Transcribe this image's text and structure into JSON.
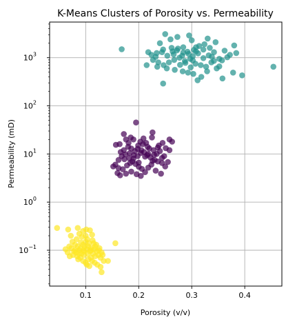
{
  "chart_data": {
    "type": "scatter",
    "title": "K-Means Clusters of Porosity vs. Permeability",
    "xlabel": "Porosity (v/v)",
    "ylabel": "Permeability (mD)",
    "xlim": [
      0.032,
      0.47
    ],
    "ylim": [
      0.018,
      5500
    ],
    "yscale": "log",
    "grid": true,
    "marker_alpha": 0.7,
    "x_ticks": [
      {
        "value": 0.1,
        "label": "0.1"
      },
      {
        "value": 0.2,
        "label": "0.2"
      },
      {
        "value": 0.3,
        "label": "0.3"
      },
      {
        "value": 0.4,
        "label": "0.4"
      }
    ],
    "y_ticks": [
      {
        "value": 0.1,
        "label": "10",
        "exp": "−1"
      },
      {
        "value": 1,
        "label": "10",
        "exp": "0"
      },
      {
        "value": 10,
        "label": "10",
        "exp": "1"
      },
      {
        "value": 100,
        "label": "10",
        "exp": "2"
      },
      {
        "value": 1000,
        "label": "10",
        "exp": "3"
      }
    ],
    "series": [
      {
        "color": "#440154",
        "points": [
          [
            0.164,
            16
          ],
          [
            0.172,
            26
          ],
          [
            0.185,
            22
          ],
          [
            0.176,
            20
          ],
          [
            0.195,
            45
          ],
          [
            0.205,
            12
          ],
          [
            0.218,
            10
          ],
          [
            0.225,
            22
          ],
          [
            0.226,
            28
          ],
          [
            0.238,
            15
          ],
          [
            0.245,
            17
          ],
          [
            0.258,
            20
          ],
          [
            0.263,
            18
          ],
          [
            0.168,
            9
          ],
          [
            0.162,
            7.5
          ],
          [
            0.156,
            6
          ],
          [
            0.152,
            5.5
          ],
          [
            0.16,
            4
          ],
          [
            0.165,
            3.6
          ],
          [
            0.17,
            4.8
          ],
          [
            0.178,
            5.8
          ],
          [
            0.184,
            6.5
          ],
          [
            0.19,
            8
          ],
          [
            0.198,
            9
          ],
          [
            0.204,
            10.5
          ],
          [
            0.21,
            11
          ],
          [
            0.216,
            9.5
          ],
          [
            0.222,
            8.5
          ],
          [
            0.23,
            7.5
          ],
          [
            0.236,
            7
          ],
          [
            0.244,
            6.5
          ],
          [
            0.25,
            5.5
          ],
          [
            0.255,
            6.8
          ],
          [
            0.172,
            12
          ],
          [
            0.18,
            14
          ],
          [
            0.186,
            13
          ],
          [
            0.193,
            11.5
          ],
          [
            0.199,
            15
          ],
          [
            0.208,
            16
          ],
          [
            0.214,
            17
          ],
          [
            0.22,
            13
          ],
          [
            0.228,
            12
          ],
          [
            0.234,
            10
          ],
          [
            0.24,
            11.5
          ],
          [
            0.248,
            9
          ],
          [
            0.258,
            12
          ],
          [
            0.166,
            11
          ],
          [
            0.175,
            9.8
          ],
          [
            0.182,
            8.2
          ],
          [
            0.188,
            7
          ],
          [
            0.194,
            6.2
          ],
          [
            0.2,
            5.4
          ],
          [
            0.206,
            4.9
          ],
          [
            0.212,
            4.2
          ],
          [
            0.218,
            5.2
          ],
          [
            0.224,
            6
          ],
          [
            0.186,
            4.3
          ],
          [
            0.176,
            3.9
          ],
          [
            0.196,
            3.8
          ],
          [
            0.204,
            3.5
          ],
          [
            0.232,
            4.5
          ],
          [
            0.242,
            3.9
          ],
          [
            0.19,
            20
          ],
          [
            0.209,
            21
          ],
          [
            0.203,
            18
          ],
          [
            0.181,
            17
          ],
          [
            0.157,
            15.5
          ],
          [
            0.217,
            14
          ],
          [
            0.226,
            7.2
          ],
          [
            0.212,
            8.8
          ],
          [
            0.198,
            12.8
          ],
          [
            0.183,
            10.4
          ],
          [
            0.173,
            7.8
          ],
          [
            0.162,
            5.1
          ],
          [
            0.236,
            13.6
          ],
          [
            0.251,
            13.2
          ],
          [
            0.244,
            8.3
          ],
          [
            0.229,
            9.6
          ],
          [
            0.2,
            6.6
          ],
          [
            0.191,
            9.4
          ]
        ]
      },
      {
        "color": "#21918c",
        "points": [
          [
            0.168,
            1500
          ],
          [
            0.25,
            3100
          ],
          [
            0.24,
            2000
          ],
          [
            0.26,
            2400
          ],
          [
            0.273,
            2700
          ],
          [
            0.295,
            2900
          ],
          [
            0.3,
            2300
          ],
          [
            0.33,
            2500
          ],
          [
            0.345,
            2100
          ],
          [
            0.38,
            1800
          ],
          [
            0.384,
            1250
          ],
          [
            0.372,
            1150
          ],
          [
            0.362,
            1400
          ],
          [
            0.352,
            950
          ],
          [
            0.342,
            1300
          ],
          [
            0.334,
            1600
          ],
          [
            0.324,
            1900
          ],
          [
            0.314,
            1750
          ],
          [
            0.304,
            1450
          ],
          [
            0.294,
            1200
          ],
          [
            0.284,
            1650
          ],
          [
            0.274,
            1550
          ],
          [
            0.264,
            1350
          ],
          [
            0.254,
            1100
          ],
          [
            0.244,
            1300
          ],
          [
            0.234,
            1250
          ],
          [
            0.224,
            1150
          ],
          [
            0.218,
            1300
          ],
          [
            0.227,
            900
          ],
          [
            0.237,
            800
          ],
          [
            0.247,
            700
          ],
          [
            0.257,
            800
          ],
          [
            0.267,
            900
          ],
          [
            0.277,
            1000
          ],
          [
            0.287,
            850
          ],
          [
            0.297,
            950
          ],
          [
            0.307,
            750
          ],
          [
            0.317,
            700
          ],
          [
            0.327,
            650
          ],
          [
            0.337,
            800
          ],
          [
            0.347,
            600
          ],
          [
            0.357,
            880
          ],
          [
            0.367,
            1020
          ],
          [
            0.215,
            700
          ],
          [
            0.235,
            650
          ],
          [
            0.253,
            600
          ],
          [
            0.268,
            560
          ],
          [
            0.283,
            520
          ],
          [
            0.293,
            490
          ],
          [
            0.303,
            460
          ],
          [
            0.318,
            400
          ],
          [
            0.358,
            370
          ],
          [
            0.378,
            490
          ],
          [
            0.395,
            430
          ],
          [
            0.454,
            650
          ],
          [
            0.246,
            290
          ],
          [
            0.311,
            340
          ],
          [
            0.329,
            520
          ],
          [
            0.284,
            1280
          ],
          [
            0.262,
            1600
          ],
          [
            0.272,
            1420
          ],
          [
            0.282,
            1100
          ],
          [
            0.292,
            1330
          ],
          [
            0.302,
            1080
          ],
          [
            0.312,
            1230
          ],
          [
            0.322,
            980
          ],
          [
            0.332,
            1120
          ],
          [
            0.342,
            860
          ],
          [
            0.302,
            880
          ],
          [
            0.322,
            1470
          ],
          [
            0.278,
            710
          ],
          [
            0.266,
            1170
          ],
          [
            0.298,
            630
          ],
          [
            0.352,
            660
          ],
          [
            0.246,
            1480
          ],
          [
            0.308,
            1650
          ],
          [
            0.338,
            1050
          ],
          [
            0.288,
            780
          ],
          [
            0.308,
            1350
          ],
          [
            0.232,
            1040
          ]
        ]
      },
      {
        "color": "#fde725",
        "points": [
          [
            0.046,
            0.29
          ],
          [
            0.067,
            0.27
          ],
          [
            0.072,
            0.2
          ],
          [
            0.085,
            0.29
          ],
          [
            0.088,
            0.22
          ],
          [
            0.095,
            0.25
          ],
          [
            0.101,
            0.27
          ],
          [
            0.108,
            0.26
          ],
          [
            0.112,
            0.21
          ],
          [
            0.075,
            0.15
          ],
          [
            0.08,
            0.13
          ],
          [
            0.085,
            0.12
          ],
          [
            0.09,
            0.11
          ],
          [
            0.095,
            0.13
          ],
          [
            0.1,
            0.15
          ],
          [
            0.105,
            0.12
          ],
          [
            0.11,
            0.11
          ],
          [
            0.115,
            0.14
          ],
          [
            0.12,
            0.13
          ],
          [
            0.125,
            0.1
          ],
          [
            0.13,
            0.09
          ],
          [
            0.066,
            0.09
          ],
          [
            0.07,
            0.075
          ],
          [
            0.076,
            0.08
          ],
          [
            0.082,
            0.09
          ],
          [
            0.088,
            0.1
          ],
          [
            0.092,
            0.085
          ],
          [
            0.097,
            0.095
          ],
          [
            0.102,
            0.105
          ],
          [
            0.108,
            0.095
          ],
          [
            0.114,
            0.085
          ],
          [
            0.118,
            0.075
          ],
          [
            0.124,
            0.08
          ],
          [
            0.128,
            0.07
          ],
          [
            0.134,
            0.06
          ],
          [
            0.142,
            0.06
          ],
          [
            0.09,
            0.07
          ],
          [
            0.095,
            0.06
          ],
          [
            0.1,
            0.055
          ],
          [
            0.105,
            0.065
          ],
          [
            0.11,
            0.07
          ],
          [
            0.117,
            0.055
          ],
          [
            0.122,
            0.05
          ],
          [
            0.128,
            0.045
          ],
          [
            0.102,
            0.05
          ],
          [
            0.107,
            0.047
          ],
          [
            0.112,
            0.06
          ],
          [
            0.097,
            0.08
          ],
          [
            0.086,
            0.065
          ],
          [
            0.08,
            0.1
          ],
          [
            0.073,
            0.11
          ],
          [
            0.069,
            0.12
          ],
          [
            0.093,
            0.19
          ],
          [
            0.103,
            0.17
          ],
          [
            0.113,
            0.16
          ],
          [
            0.118,
            0.12
          ],
          [
            0.098,
            0.12
          ],
          [
            0.104,
            0.085
          ],
          [
            0.11,
            0.1
          ],
          [
            0.121,
            0.095
          ],
          [
            0.126,
            0.11
          ],
          [
            0.132,
            0.08
          ],
          [
            0.078,
            0.095
          ],
          [
            0.084,
            0.075
          ],
          [
            0.062,
            0.105
          ],
          [
            0.13,
            0.035
          ],
          [
            0.1,
            0.2
          ],
          [
            0.091,
            0.145
          ],
          [
            0.106,
            0.14
          ],
          [
            0.116,
            0.105
          ],
          [
            0.096,
            0.1
          ],
          [
            0.156,
            0.14
          ],
          [
            0.083,
            0.17
          ],
          [
            0.087,
            0.085
          ]
        ]
      }
    ]
  }
}
